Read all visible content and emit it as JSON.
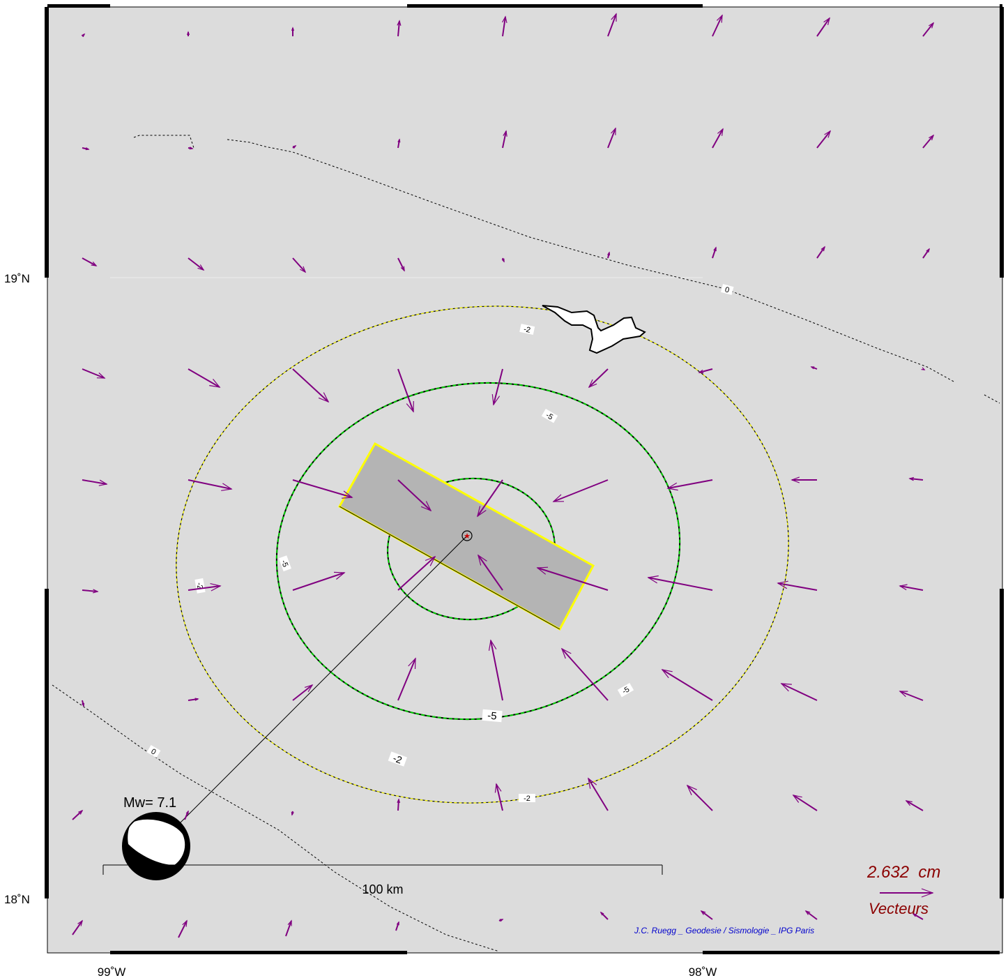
{
  "map": {
    "lat_labels": [
      "19˚N",
      "18˚N"
    ],
    "lon_labels": [
      "99˚W",
      "98˚W"
    ],
    "magnitude_label": "Mw= 7.1",
    "scale_bar_label": "100 km",
    "legend": {
      "value_label": "2.632  cm",
      "arrow_label": "Vecteurs"
    },
    "credit": "J.C. Ruegg _ Geodesie / Sismologie _ IPG Paris",
    "contour_labels": {
      "zero": "0",
      "minus2": "-2",
      "minus5": "-5"
    },
    "colors": {
      "background": "#dcdcdc",
      "vector": "#800080",
      "fault_fill": "#b4b4b4",
      "fault_edge": "#ffff00",
      "contour_green": "#00c800",
      "contour_yellow": "#ffff00",
      "legend_text": "#8b0000",
      "credit_text": "#0000cc"
    }
  }
}
